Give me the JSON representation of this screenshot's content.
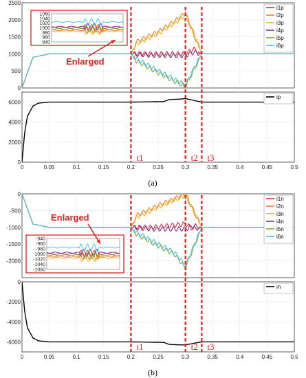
{
  "caption_a": "(a)",
  "caption_b": "(b)",
  "enlarged_label": "Enlarged",
  "markers": [
    {
      "label": "t1",
      "x": 0.2
    },
    {
      "label": "t2",
      "x": 0.3
    },
    {
      "label": "t3",
      "x": 0.33
    }
  ],
  "colors": {
    "s1": "#e8252d",
    "s2": "#ed7d31",
    "s3": "#f2b01e",
    "s4": "#7e2f8e",
    "s5": "#77ac30",
    "s6": "#4dbeee",
    "total": "#000000",
    "marker": "#e02020"
  },
  "chart_data": [
    {
      "id": "a_top",
      "type": "line",
      "xlim": [
        0,
        0.5
      ],
      "ylim": [
        0,
        2500
      ],
      "xticks": [
        "0",
        "0.05",
        "0.1",
        "0.15",
        "0.2",
        "0.25",
        "0.3",
        "0.35",
        "0.4",
        "0.45",
        "0.5"
      ],
      "yticks": [
        "0",
        "500",
        "1000",
        "1500",
        "2000",
        "2500"
      ],
      "grid": true,
      "legend": "top-right",
      "series": [
        {
          "name": "i1p",
          "values": [
            [
              0,
              0
            ],
            [
              0.02,
              900
            ],
            [
              0.05,
              1000
            ],
            [
              0.2,
              1000
            ],
            [
              0.24,
              1000
            ],
            [
              0.3,
              1000
            ],
            [
              0.315,
              1150
            ],
            [
              0.33,
              1000
            ],
            [
              0.5,
              1000
            ]
          ]
        },
        {
          "name": "i2p",
          "values": [
            [
              0,
              0
            ],
            [
              0.02,
              900
            ],
            [
              0.05,
              1000
            ],
            [
              0.2,
              1000
            ],
            [
              0.21,
              1350
            ],
            [
              0.25,
              1650
            ],
            [
              0.28,
              1950
            ],
            [
              0.3,
              2200
            ],
            [
              0.33,
              1000
            ],
            [
              0.5,
              1000
            ]
          ]
        },
        {
          "name": "i3p",
          "values": [
            [
              0,
              0
            ],
            [
              0.02,
              900
            ],
            [
              0.05,
              1000
            ],
            [
              0.2,
              1000
            ],
            [
              0.21,
              1300
            ],
            [
              0.25,
              1600
            ],
            [
              0.28,
              1900
            ],
            [
              0.3,
              2150
            ],
            [
              0.33,
              1000
            ],
            [
              0.5,
              1000
            ]
          ]
        },
        {
          "name": "i4p",
          "values": [
            [
              0,
              0
            ],
            [
              0.02,
              900
            ],
            [
              0.05,
              1000
            ],
            [
              0.2,
              1000
            ],
            [
              0.24,
              960
            ],
            [
              0.3,
              950
            ],
            [
              0.315,
              1050
            ],
            [
              0.33,
              1000
            ],
            [
              0.5,
              1000
            ]
          ]
        },
        {
          "name": "i5p",
          "values": [
            [
              0,
              0
            ],
            [
              0.02,
              900
            ],
            [
              0.05,
              1000
            ],
            [
              0.2,
              1000
            ],
            [
              0.21,
              800
            ],
            [
              0.25,
              450
            ],
            [
              0.28,
              200
            ],
            [
              0.3,
              50
            ],
            [
              0.33,
              1000
            ],
            [
              0.5,
              1000
            ]
          ]
        },
        {
          "name": "i6p",
          "values": [
            [
              0,
              0
            ],
            [
              0.02,
              900
            ],
            [
              0.05,
              1000
            ],
            [
              0.2,
              1000
            ],
            [
              0.21,
              850
            ],
            [
              0.25,
              500
            ],
            [
              0.28,
              250
            ],
            [
              0.3,
              80
            ],
            [
              0.33,
              1000
            ],
            [
              0.5,
              1000
            ]
          ]
        }
      ]
    },
    {
      "id": "a_bottom",
      "type": "line",
      "xlim": [
        0,
        0.5
      ],
      "ylim": [
        0,
        7000
      ],
      "xticks": [
        "0",
        "0.05",
        "0.1",
        "0.15",
        "0.2",
        "0.25",
        "0.3",
        "0.35",
        "0.4",
        "0.45",
        "0.5"
      ],
      "yticks": [
        "0",
        "2000",
        "4000",
        "6000"
      ],
      "grid": true,
      "legend": "top-right",
      "series": [
        {
          "name": "ip",
          "values": [
            [
              0,
              0
            ],
            [
              0.005,
              3000
            ],
            [
              0.01,
              4600
            ],
            [
              0.02,
              5600
            ],
            [
              0.03,
              5900
            ],
            [
              0.05,
              6000
            ],
            [
              0.2,
              6000
            ],
            [
              0.26,
              6050
            ],
            [
              0.27,
              6250
            ],
            [
              0.29,
              6300
            ],
            [
              0.3,
              6350
            ],
            [
              0.33,
              6000
            ],
            [
              0.5,
              6000
            ]
          ]
        }
      ]
    },
    {
      "id": "a_inset",
      "type": "line",
      "ylim": [
        940,
        1060
      ],
      "yticks": [
        "1060",
        "1040",
        "1020",
        "1000",
        "980",
        "960",
        "940"
      ],
      "series": [
        {
          "name": "i1p",
          "values": [
            1000
          ]
        },
        {
          "name": "i2p",
          "values": [
            990
          ]
        },
        {
          "name": "i3p",
          "values": [
            985
          ]
        },
        {
          "name": "i4p",
          "values": [
            1005
          ]
        },
        {
          "name": "i5p",
          "values": [
            995
          ]
        },
        {
          "name": "i6p",
          "values": [
            1025
          ]
        }
      ]
    },
    {
      "id": "b_top",
      "type": "line",
      "xlim": [
        0,
        0.5
      ],
      "ylim": [
        -2500,
        0
      ],
      "xticks": [
        "0",
        "0.05",
        "0.1",
        "0.15",
        "0.2",
        "0.25",
        "0.3",
        "0.35",
        "0.4",
        "0.45",
        "0.5"
      ],
      "yticks": [
        "0",
        "-500",
        "-1000",
        "-1500",
        "-2000"
      ],
      "grid": true,
      "legend": "top-right",
      "series": [
        {
          "name": "i1n",
          "values": [
            [
              0,
              0
            ],
            [
              0.02,
              -900
            ],
            [
              0.05,
              -1000
            ],
            [
              0.2,
              -1000
            ],
            [
              0.24,
              -1000
            ],
            [
              0.3,
              -900
            ],
            [
              0.315,
              -1050
            ],
            [
              0.33,
              -1000
            ],
            [
              0.5,
              -1000
            ]
          ]
        },
        {
          "name": "i2n",
          "values": [
            [
              0,
              0
            ],
            [
              0.02,
              -900
            ],
            [
              0.05,
              -1000
            ],
            [
              0.2,
              -1000
            ],
            [
              0.21,
              -650
            ],
            [
              0.25,
              -350
            ],
            [
              0.28,
              -150
            ],
            [
              0.3,
              0
            ],
            [
              0.33,
              -1000
            ],
            [
              0.5,
              -1000
            ]
          ]
        },
        {
          "name": "i3n",
          "values": [
            [
              0,
              0
            ],
            [
              0.02,
              -900
            ],
            [
              0.05,
              -1000
            ],
            [
              0.2,
              -1000
            ],
            [
              0.21,
              -700
            ],
            [
              0.25,
              -400
            ],
            [
              0.28,
              -180
            ],
            [
              0.3,
              -40
            ],
            [
              0.33,
              -1000
            ],
            [
              0.5,
              -1000
            ]
          ]
        },
        {
          "name": "i4n",
          "values": [
            [
              0,
              0
            ],
            [
              0.02,
              -900
            ],
            [
              0.05,
              -1000
            ],
            [
              0.2,
              -1000
            ],
            [
              0.24,
              -1050
            ],
            [
              0.3,
              -1050
            ],
            [
              0.315,
              -950
            ],
            [
              0.33,
              -1000
            ],
            [
              0.5,
              -1000
            ]
          ]
        },
        {
          "name": "i5n",
          "values": [
            [
              0,
              0
            ],
            [
              0.02,
              -900
            ],
            [
              0.05,
              -1000
            ],
            [
              0.2,
              -1000
            ],
            [
              0.21,
              -1200
            ],
            [
              0.25,
              -1550
            ],
            [
              0.28,
              -1800
            ],
            [
              0.3,
              -2200
            ],
            [
              0.33,
              -1000
            ],
            [
              0.5,
              -1000
            ]
          ]
        },
        {
          "name": "i6n",
          "values": [
            [
              0,
              0
            ],
            [
              0.02,
              -900
            ],
            [
              0.05,
              -1000
            ],
            [
              0.2,
              -1000
            ],
            [
              0.21,
              -1150
            ],
            [
              0.25,
              -1500
            ],
            [
              0.28,
              -1750
            ],
            [
              0.3,
              -2150
            ],
            [
              0.33,
              -1000
            ],
            [
              0.5,
              -1000
            ]
          ]
        }
      ]
    },
    {
      "id": "b_bottom",
      "type": "line",
      "xlim": [
        0,
        0.5
      ],
      "ylim": [
        -7000,
        0
      ],
      "xticks": [
        "0",
        "0.05",
        "0.1",
        "0.15",
        "0.2",
        "0.25",
        "0.3",
        "0.35",
        "0.4",
        "0.45",
        "0.5"
      ],
      "yticks": [
        "0",
        "-2000",
        "-4000",
        "-6000"
      ],
      "grid": true,
      "legend": "top-right",
      "series": [
        {
          "name": "in",
          "values": [
            [
              0,
              0
            ],
            [
              0.005,
              -3000
            ],
            [
              0.01,
              -4600
            ],
            [
              0.02,
              -5600
            ],
            [
              0.03,
              -5900
            ],
            [
              0.05,
              -6000
            ],
            [
              0.2,
              -6000
            ],
            [
              0.26,
              -6050
            ],
            [
              0.27,
              -6250
            ],
            [
              0.29,
              -6300
            ],
            [
              0.3,
              -6300
            ],
            [
              0.33,
              -6000
            ],
            [
              0.5,
              -6000
            ]
          ]
        }
      ]
    },
    {
      "id": "b_inset",
      "type": "line",
      "ylim": [
        -1060,
        -940
      ],
      "yticks": [
        "-940",
        "-960",
        "-980",
        "-1000",
        "-1020",
        "-1040",
        "-1060"
      ],
      "series": [
        {
          "name": "i1n",
          "values": [
            -1000
          ]
        },
        {
          "name": "i2n",
          "values": [
            -1010
          ]
        },
        {
          "name": "i3n",
          "values": [
            -1015
          ]
        },
        {
          "name": "i4n",
          "values": [
            -995
          ]
        },
        {
          "name": "i5n",
          "values": [
            -1005
          ]
        },
        {
          "name": "i6n",
          "values": [
            -975
          ]
        }
      ]
    }
  ]
}
